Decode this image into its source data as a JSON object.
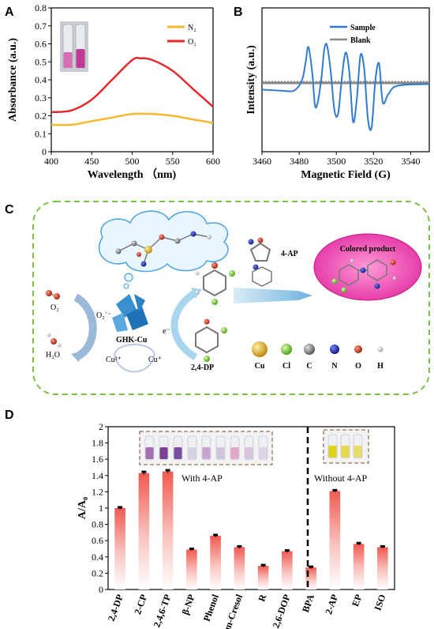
{
  "panels": {
    "a": "A",
    "b": "B",
    "c": "C",
    "d": "D"
  },
  "chart_data": [
    {
      "type": "line",
      "xlabel": "Wavelength （nm)",
      "ylabel": "Absorbance (a.u.)",
      "xlim": [
        400,
        600
      ],
      "ylim": [
        0,
        0.8
      ],
      "xticks": [
        400,
        450,
        500,
        550,
        600
      ],
      "yticks": [
        0,
        0.1,
        0.2,
        0.3,
        0.4,
        0.5,
        0.6,
        0.7,
        0.8
      ],
      "legend_position": "top-right",
      "series": [
        {
          "name": "N₂",
          "color": "#f5b82e",
          "x": [
            400,
            425,
            450,
            475,
            500,
            525,
            550,
            575,
            600
          ],
          "y": [
            0.15,
            0.15,
            0.17,
            0.19,
            0.21,
            0.21,
            0.2,
            0.18,
            0.16
          ]
        },
        {
          "name": "O₂",
          "color": "#e32a2a",
          "x": [
            400,
            425,
            450,
            475,
            500,
            510,
            525,
            550,
            575,
            600
          ],
          "y": [
            0.22,
            0.23,
            0.29,
            0.4,
            0.51,
            0.52,
            0.51,
            0.45,
            0.35,
            0.25
          ]
        }
      ]
    },
    {
      "type": "line",
      "xlabel": "Magnetic Field (G)",
      "ylabel": "Intensity (a.u.)",
      "xlim": [
        3460,
        3550
      ],
      "ylim": [
        -1,
        1
      ],
      "xticks": [
        3460,
        3480,
        3500,
        3520,
        3540
      ],
      "legend_position": "top-right",
      "series": [
        {
          "name": "Sample",
          "color": "#2e7bd0",
          "x": [
            3460,
            3470,
            3476,
            3478,
            3480,
            3482,
            3483.5,
            3485,
            3487,
            3488.5,
            3490,
            3492,
            3493.5,
            3495,
            3497,
            3499,
            3501,
            3503,
            3505,
            3507,
            3509,
            3511,
            3513,
            3515,
            3517,
            3519,
            3521,
            3523,
            3525,
            3528,
            3533,
            3550
          ],
          "y": [
            -0.12,
            -0.14,
            -0.15,
            -0.12,
            -0.05,
            0.1,
            0.38,
            0.65,
            0.2,
            -0.4,
            -0.35,
            0.1,
            0.6,
            0.68,
            0.2,
            -0.5,
            -0.55,
            0.1,
            0.55,
            0.2,
            -0.7,
            -0.3,
            0.5,
            0.25,
            -0.65,
            -0.8,
            0.05,
            0.35,
            -0.35,
            -0.2,
            -0.05,
            -0.02
          ]
        },
        {
          "name": "Blank",
          "color": "#888888",
          "x": [
            3460,
            3550
          ],
          "y": [
            0,
            0
          ]
        }
      ]
    },
    {
      "type": "bar",
      "ylabel": "A/A₀",
      "ylim": [
        0,
        2
      ],
      "yticks": [
        0,
        0.2,
        0.4,
        0.6,
        0.8,
        1,
        1.2,
        1.4,
        1.6,
        1.8,
        2
      ],
      "categories": [
        "2,4-DP",
        "2-CP",
        "2,4,6-TP",
        "β-NP",
        "Phenol",
        "m-Cresol",
        "R",
        "2,6-DOP",
        "BPA",
        "2-AP",
        "EP",
        "ISO"
      ],
      "values": [
        1.0,
        1.43,
        1.45,
        0.49,
        0.66,
        0.52,
        0.29,
        0.47,
        0.27,
        1.21,
        0.56,
        0.52
      ],
      "errors": [
        0.015,
        0.02,
        0.02,
        0.015,
        0.015,
        0.015,
        0.015,
        0.015,
        0.015,
        0.015,
        0.015,
        0.015
      ],
      "group_labels": [
        "With 4-AP",
        "Without 4-AP"
      ]
    }
  ],
  "diagram_c": {
    "ligand_o2": "O₂",
    "water": "H₂O",
    "superoxide": "O₂˙⁻",
    "catalyst": "GHK-Cu",
    "cu2": "Cu²⁺",
    "cu1": "Cu⁺",
    "electron": "e⁻",
    "substrate": "2,4-DP",
    "reagent": "4-AP",
    "product": "Colored  product",
    "legend": [
      "Cu",
      "Cl",
      "C",
      "N",
      "O",
      "H"
    ],
    "legend_colors": [
      "#e3b21c",
      "#7ed321",
      "#808080",
      "#1a2aa8",
      "#d0311b",
      "#e8e8e8"
    ]
  }
}
